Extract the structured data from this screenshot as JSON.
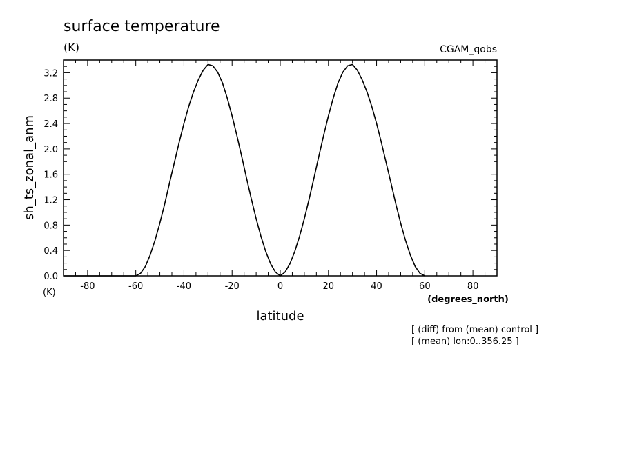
{
  "chart_data": {
    "type": "line",
    "title": "surface temperature",
    "title_units": "(K)",
    "dataset_label": "CGAM_qobs",
    "xlabel": "latitude",
    "xlabel_units": "(degrees_north)",
    "ylabel": "sh_ts_zonal_anm",
    "ylabel_units": "(K)",
    "xlim": [
      -90,
      90
    ],
    "ylim": [
      0,
      3.4
    ],
    "xticks": [
      -80,
      -60,
      -40,
      -20,
      0,
      20,
      40,
      60,
      80
    ],
    "xtick_labels": [
      "-80",
      "-60",
      "-40",
      "-20",
      "0",
      "20",
      "40",
      "60",
      "80"
    ],
    "yticks": [
      0.0,
      0.4,
      0.8,
      1.2,
      1.6,
      2.0,
      2.4,
      2.8,
      3.2
    ],
    "ytick_labels": [
      "0.0",
      "0.4",
      "0.8",
      "1.2",
      "1.6",
      "2.0",
      "2.4",
      "2.8",
      "3.2"
    ],
    "grid": false,
    "color": "#000000",
    "series": [
      {
        "x": [
          -90,
          -60,
          -58,
          -56,
          -54,
          -52,
          -50,
          -48,
          -46,
          -44,
          -42,
          -40,
          -38,
          -36,
          -34,
          -32,
          -30,
          -28,
          -26,
          -24,
          -22,
          -20,
          -18,
          -16,
          -14,
          -12,
          -10,
          -8,
          -6,
          -4,
          -2,
          0,
          2,
          4,
          6,
          8,
          10,
          12,
          14,
          16,
          18,
          20,
          22,
          24,
          26,
          28,
          30,
          32,
          34,
          36,
          38,
          40,
          42,
          44,
          46,
          48,
          50,
          52,
          54,
          56,
          58,
          60
        ],
        "y": [
          0.0,
          0.0,
          0.04,
          0.15,
          0.33,
          0.56,
          0.83,
          1.13,
          1.46,
          1.78,
          2.1,
          2.4,
          2.67,
          2.9,
          3.09,
          3.24,
          3.33,
          3.31,
          3.21,
          3.04,
          2.8,
          2.52,
          2.21,
          1.88,
          1.54,
          1.21,
          0.9,
          0.62,
          0.38,
          0.19,
          0.06,
          0.0,
          0.06,
          0.19,
          0.38,
          0.62,
          0.9,
          1.21,
          1.54,
          1.88,
          2.21,
          2.52,
          2.8,
          3.04,
          3.21,
          3.31,
          3.33,
          3.24,
          3.09,
          2.9,
          2.67,
          2.4,
          2.1,
          1.78,
          1.46,
          1.13,
          0.83,
          0.56,
          0.33,
          0.15,
          0.04,
          0.0
        ]
      }
    ],
    "annotations": [
      "[ (diff) from (mean) control ]",
      "[ (mean) lon:0..356.25 ]"
    ]
  }
}
